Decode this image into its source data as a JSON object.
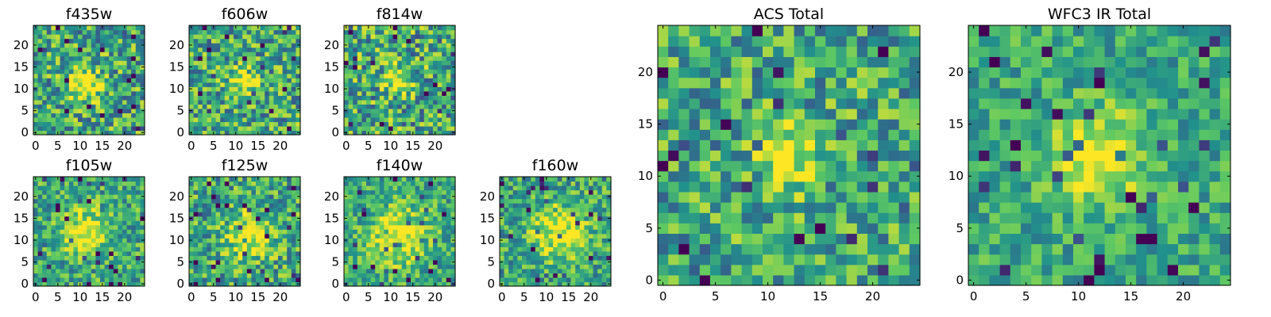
{
  "figure": {
    "colormap": "viridis",
    "colormap_stops": [
      "#440154",
      "#3b528b",
      "#21918c",
      "#5ec962",
      "#fde725"
    ],
    "background": "#ffffff"
  },
  "chart_data": [
    {
      "type": "heatmap",
      "title": "f435w",
      "grid": [
        25,
        25
      ],
      "xlim": [
        0,
        24
      ],
      "ylim": [
        0,
        24
      ],
      "xticks": [
        "0",
        "5",
        "10",
        "15",
        "20"
      ],
      "yticks": [
        "0",
        "5",
        "10",
        "15",
        "20"
      ],
      "grid_lines": false,
      "peak": {
        "x": 11,
        "y": 11,
        "radius": 2.5
      },
      "noise_level": 0.55
    },
    {
      "type": "heatmap",
      "title": "f606w",
      "grid": [
        25,
        25
      ],
      "xlim": [
        0,
        24
      ],
      "ylim": [
        0,
        24
      ],
      "xticks": [
        "0",
        "5",
        "10",
        "15",
        "20"
      ],
      "yticks": [
        "0",
        "5",
        "10",
        "15",
        "20"
      ],
      "grid_lines": false,
      "peak": {
        "x": 12,
        "y": 12,
        "radius": 2.2
      },
      "noise_level": 0.55
    },
    {
      "type": "heatmap",
      "title": "f814w",
      "grid": [
        25,
        25
      ],
      "xlim": [
        0,
        24
      ],
      "ylim": [
        0,
        24
      ],
      "xticks": [
        "0",
        "5",
        "10",
        "15",
        "20"
      ],
      "yticks": [
        "0",
        "5",
        "10",
        "15",
        "20"
      ],
      "grid_lines": false,
      "peak": {
        "x": 12,
        "y": 12,
        "radius": 2.2
      },
      "noise_level": 0.6
    },
    {
      "type": "heatmap",
      "title": "f105w",
      "grid": [
        25,
        25
      ],
      "xlim": [
        0,
        24
      ],
      "ylim": [
        0,
        24
      ],
      "xticks": [
        "0",
        "5",
        "10",
        "15",
        "20"
      ],
      "yticks": [
        "0",
        "5",
        "10",
        "15",
        "20"
      ],
      "grid_lines": false,
      "peak": {
        "x": 11,
        "y": 12,
        "radius": 3.5
      },
      "noise_level": 0.45
    },
    {
      "type": "heatmap",
      "title": "f125w",
      "grid": [
        25,
        25
      ],
      "xlim": [
        0,
        24
      ],
      "ylim": [
        0,
        24
      ],
      "xticks": [
        "0",
        "5",
        "10",
        "15",
        "20"
      ],
      "yticks": [
        "0",
        "5",
        "10",
        "15",
        "20"
      ],
      "grid_lines": false,
      "peak": {
        "x": 13,
        "y": 11,
        "radius": 3.5
      },
      "noise_level": 0.5
    },
    {
      "type": "heatmap",
      "title": "f140w",
      "grid": [
        25,
        25
      ],
      "xlim": [
        0,
        24
      ],
      "ylim": [
        0,
        24
      ],
      "xticks": [
        "0",
        "5",
        "10",
        "15",
        "20"
      ],
      "yticks": [
        "0",
        "5",
        "10",
        "15",
        "20"
      ],
      "grid_lines": false,
      "peak": {
        "x": 12,
        "y": 11,
        "radius": 4.5
      },
      "noise_level": 0.4
    },
    {
      "type": "heatmap",
      "title": "f160w",
      "grid": [
        25,
        25
      ],
      "xlim": [
        0,
        24
      ],
      "ylim": [
        0,
        24
      ],
      "xticks": [
        "0",
        "5",
        "10",
        "15",
        "20"
      ],
      "yticks": [
        "0",
        "5",
        "10",
        "15",
        "20"
      ],
      "grid_lines": false,
      "peak": {
        "x": 13,
        "y": 12,
        "radius": 4
      },
      "noise_level": 0.45
    },
    {
      "type": "heatmap",
      "title": "ACS Total",
      "grid": [
        25,
        25
      ],
      "xlim": [
        0,
        24
      ],
      "ylim": [
        0,
        24
      ],
      "xticks": [
        "0",
        "5",
        "10",
        "15",
        "20"
      ],
      "yticks": [
        "0",
        "5",
        "10",
        "15",
        "20"
      ],
      "grid_lines": false,
      "peak": {
        "x": 12,
        "y": 12,
        "radius": 2
      },
      "noise_level": 0.5
    },
    {
      "type": "heatmap",
      "title": "WFC3 IR Total",
      "grid": [
        25,
        25
      ],
      "xlim": [
        0,
        24
      ],
      "ylim": [
        0,
        24
      ],
      "xticks": [
        "0",
        "5",
        "10",
        "15",
        "20"
      ],
      "yticks": [
        "0",
        "5",
        "10",
        "15",
        "20"
      ],
      "grid_lines": false,
      "peak": {
        "x": 12,
        "y": 12,
        "radius": 3
      },
      "noise_level": 0.35
    }
  ]
}
